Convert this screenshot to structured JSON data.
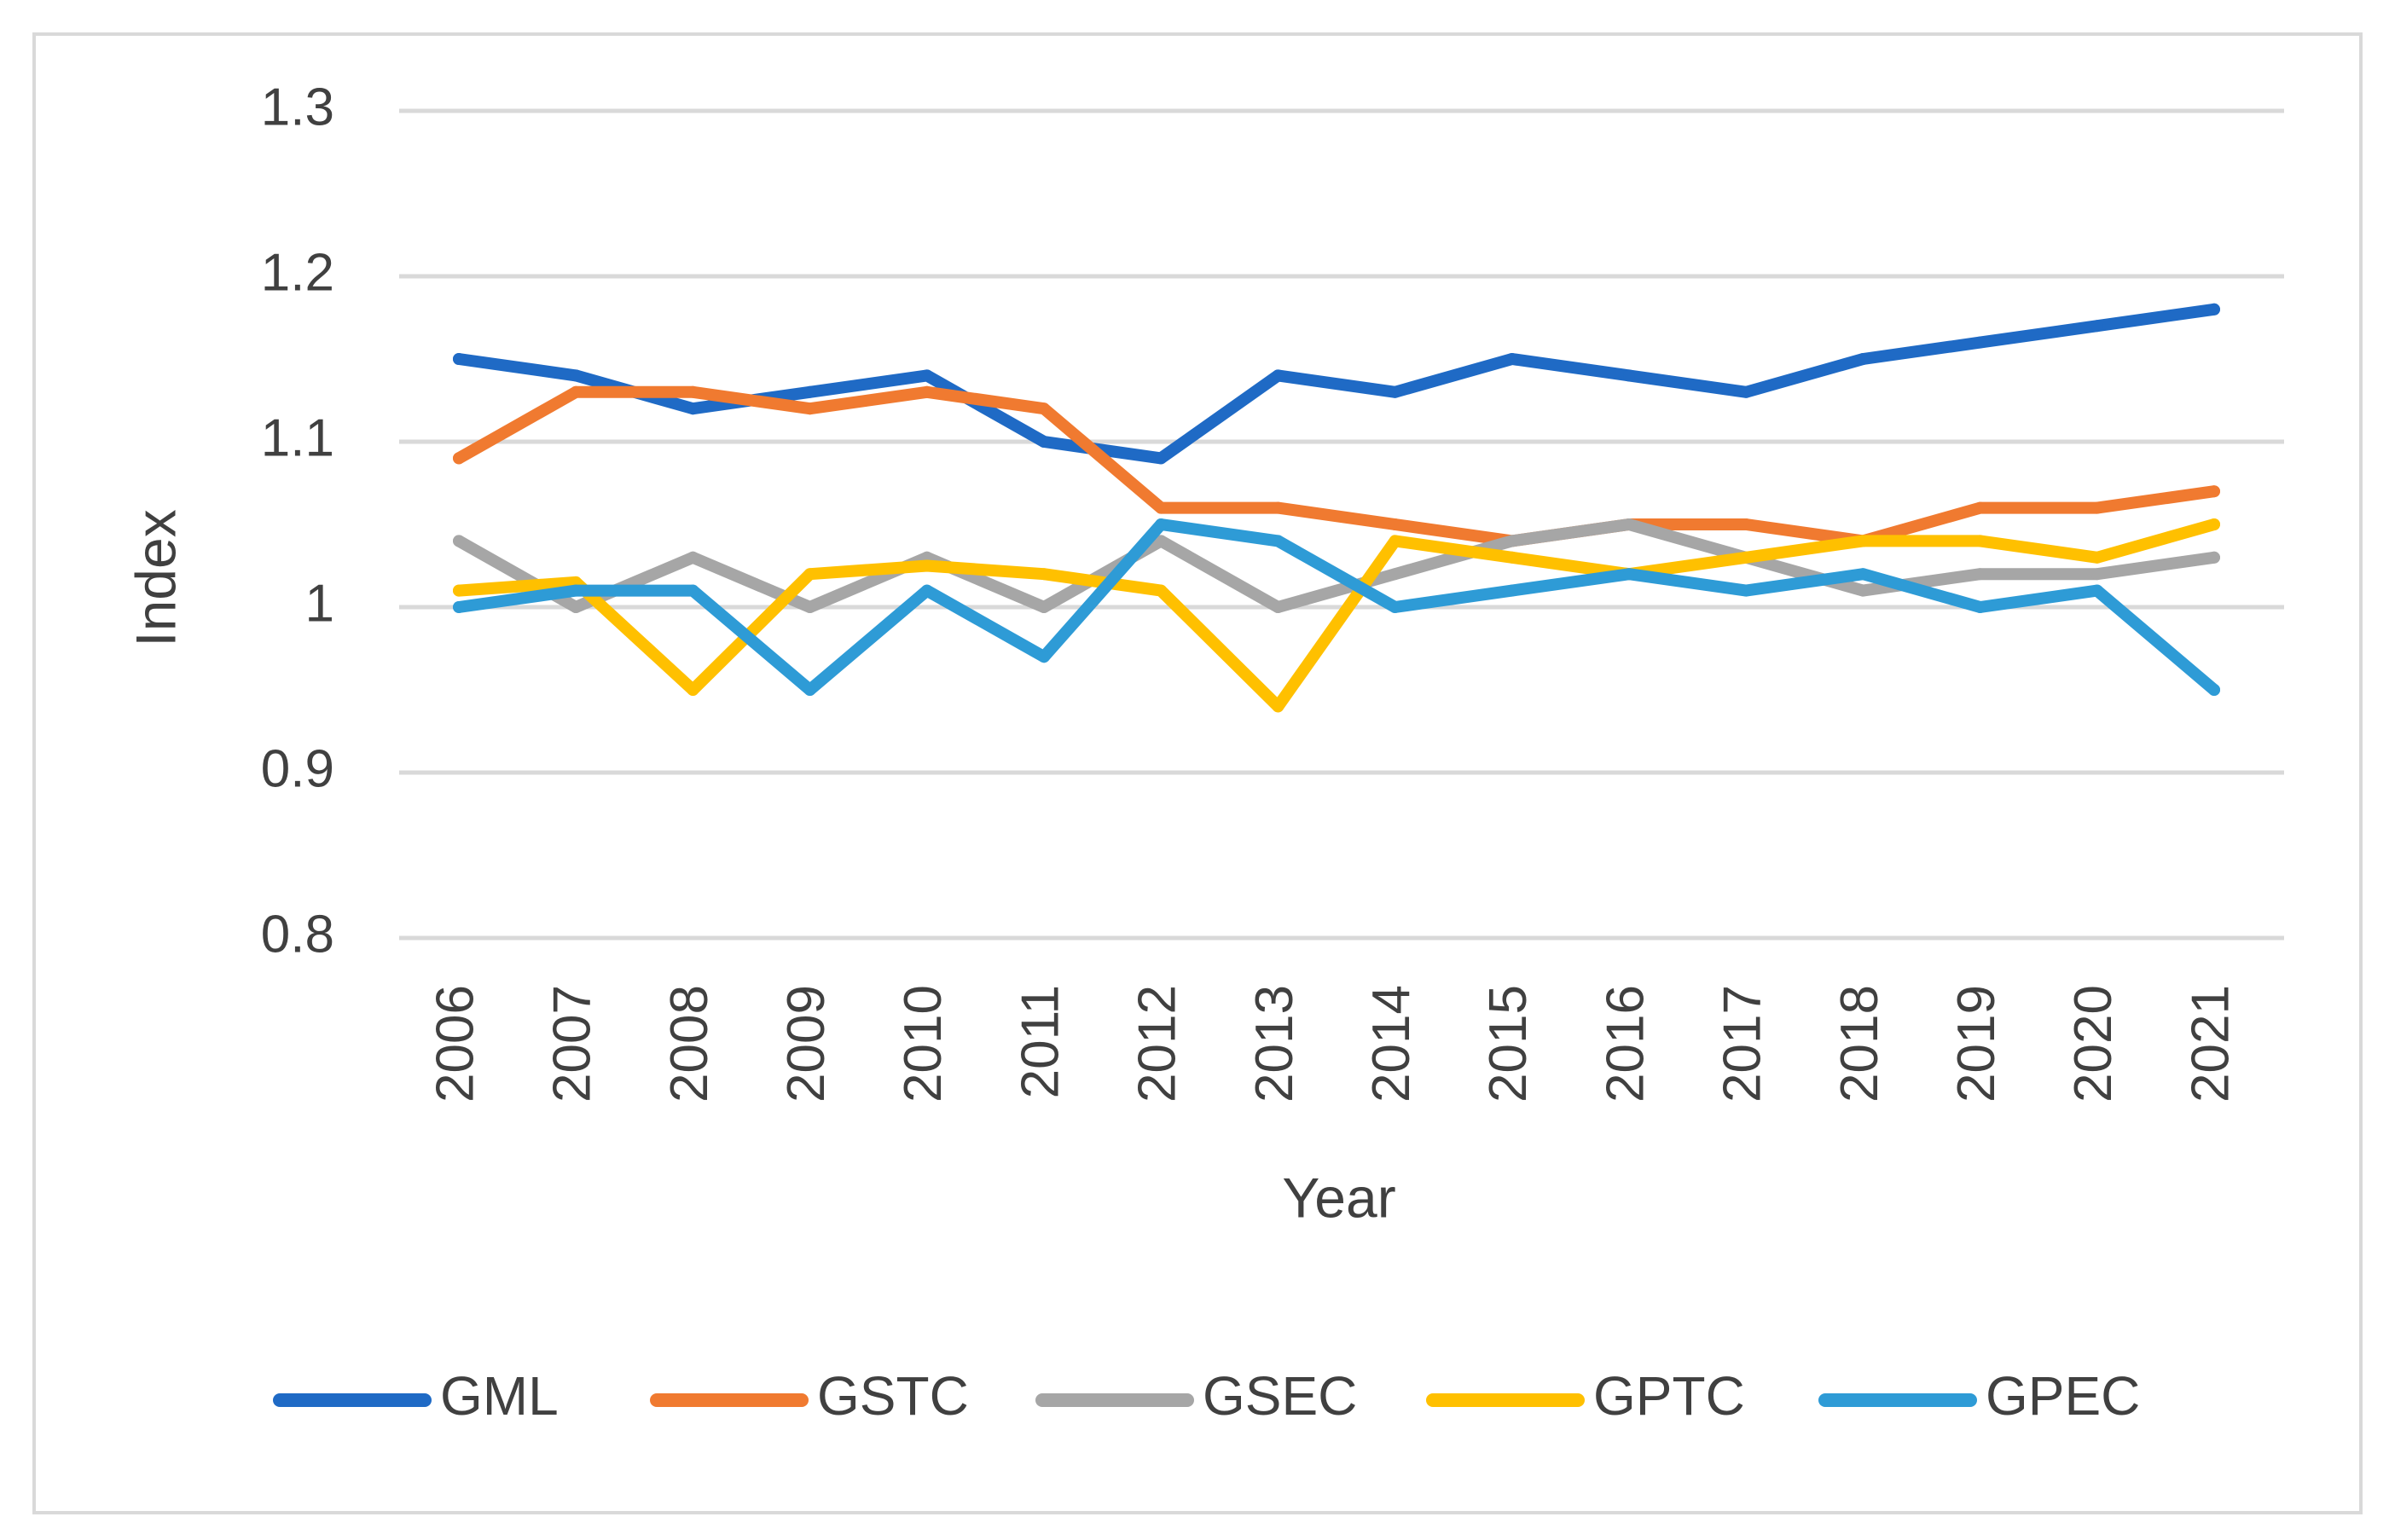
{
  "chart_data": {
    "type": "line",
    "title": "",
    "xlabel": "Year",
    "ylabel": "Index",
    "ylim": [
      0.8,
      1.3
    ],
    "y_ticks": [
      "0.8",
      "0.9",
      "1",
      "1.1",
      "1.2",
      "1.3"
    ],
    "grid": true,
    "legend_position": "bottom",
    "categories": [
      "2006",
      "2007",
      "2008",
      "2009",
      "2010",
      "2011",
      "2012",
      "2013",
      "2014",
      "2015",
      "2016",
      "2017",
      "2018",
      "2019",
      "2020",
      "2021"
    ],
    "series": [
      {
        "name": "GML",
        "color": "#1F6AC5",
        "values": [
          1.15,
          1.14,
          1.12,
          1.13,
          1.14,
          1.1,
          1.09,
          1.14,
          1.13,
          1.15,
          1.14,
          1.13,
          1.15,
          1.16,
          1.17,
          1.18
        ]
      },
      {
        "name": "GSTC",
        "color": "#F07A30",
        "values": [
          1.09,
          1.13,
          1.13,
          1.12,
          1.13,
          1.12,
          1.06,
          1.06,
          1.05,
          1.04,
          1.05,
          1.05,
          1.04,
          1.06,
          1.06,
          1.07
        ]
      },
      {
        "name": "GSEC",
        "color": "#A6A6A6",
        "values": [
          1.04,
          1.0,
          1.03,
          1.0,
          1.03,
          1.0,
          1.04,
          1.0,
          1.02,
          1.04,
          1.05,
          1.03,
          1.01,
          1.02,
          1.02,
          1.03
        ]
      },
      {
        "name": "GPTC",
        "color": "#FFC000",
        "values": [
          1.01,
          1.015,
          0.95,
          1.02,
          1.025,
          1.02,
          1.01,
          0.94,
          1.04,
          1.03,
          1.02,
          1.03,
          1.04,
          1.04,
          1.03,
          1.05
        ]
      },
      {
        "name": "GPEC",
        "color": "#2E9BD6",
        "values": [
          1.0,
          1.01,
          1.01,
          0.95,
          1.01,
          0.97,
          1.05,
          1.04,
          1.0,
          1.01,
          1.02,
          1.01,
          1.02,
          1.0,
          1.01,
          0.95
        ]
      }
    ]
  }
}
